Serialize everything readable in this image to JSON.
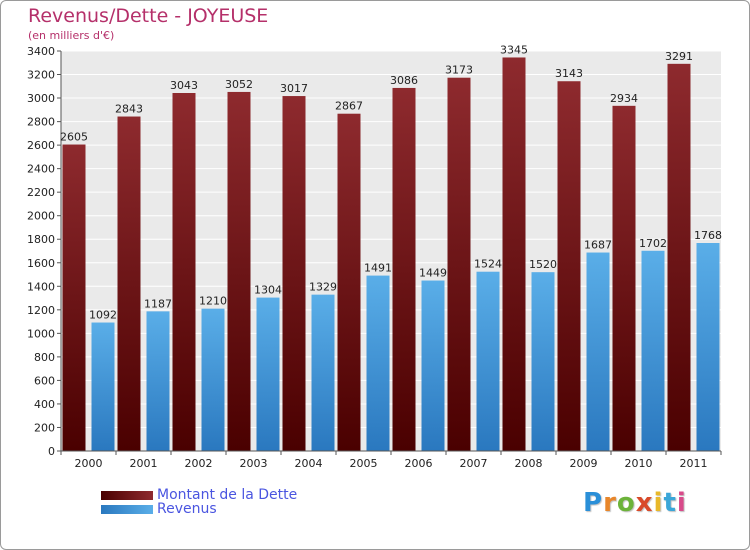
{
  "title": "Revenus/Dette - JOYEUSE",
  "subtitle": "(en milliers d'€)",
  "logo_text": "Proxiti",
  "colors": {
    "dette": "#8b1a1a",
    "revenus": "#3f9be0",
    "title": "#b5306a",
    "legend_text": "#4a55e0"
  },
  "chart_data": {
    "type": "bar",
    "categories": [
      "2000",
      "2001",
      "2002",
      "2003",
      "2004",
      "2005",
      "2006",
      "2007",
      "2008",
      "2009",
      "2010",
      "2011"
    ],
    "series": [
      {
        "name": "Montant de la Dette",
        "values": [
          2605,
          2843,
          3043,
          3052,
          3017,
          2867,
          3086,
          3173,
          3345,
          3143,
          2934,
          3291
        ]
      },
      {
        "name": "Revenus",
        "values": [
          1092,
          1187,
          1210,
          1304,
          1329,
          1491,
          1449,
          1524,
          1520,
          1687,
          1702,
          1768
        ]
      }
    ],
    "title": "Revenus/Dette - JOYEUSE",
    "ylabel": "(en milliers d'€)",
    "ylim": [
      0,
      3400
    ],
    "yticks": [
      0,
      200,
      400,
      600,
      800,
      1000,
      1200,
      1400,
      1600,
      1800,
      2000,
      2200,
      2400,
      2600,
      2800,
      3000,
      3200,
      3400
    ],
    "grid": true,
    "legend_position": "bottom-left"
  }
}
